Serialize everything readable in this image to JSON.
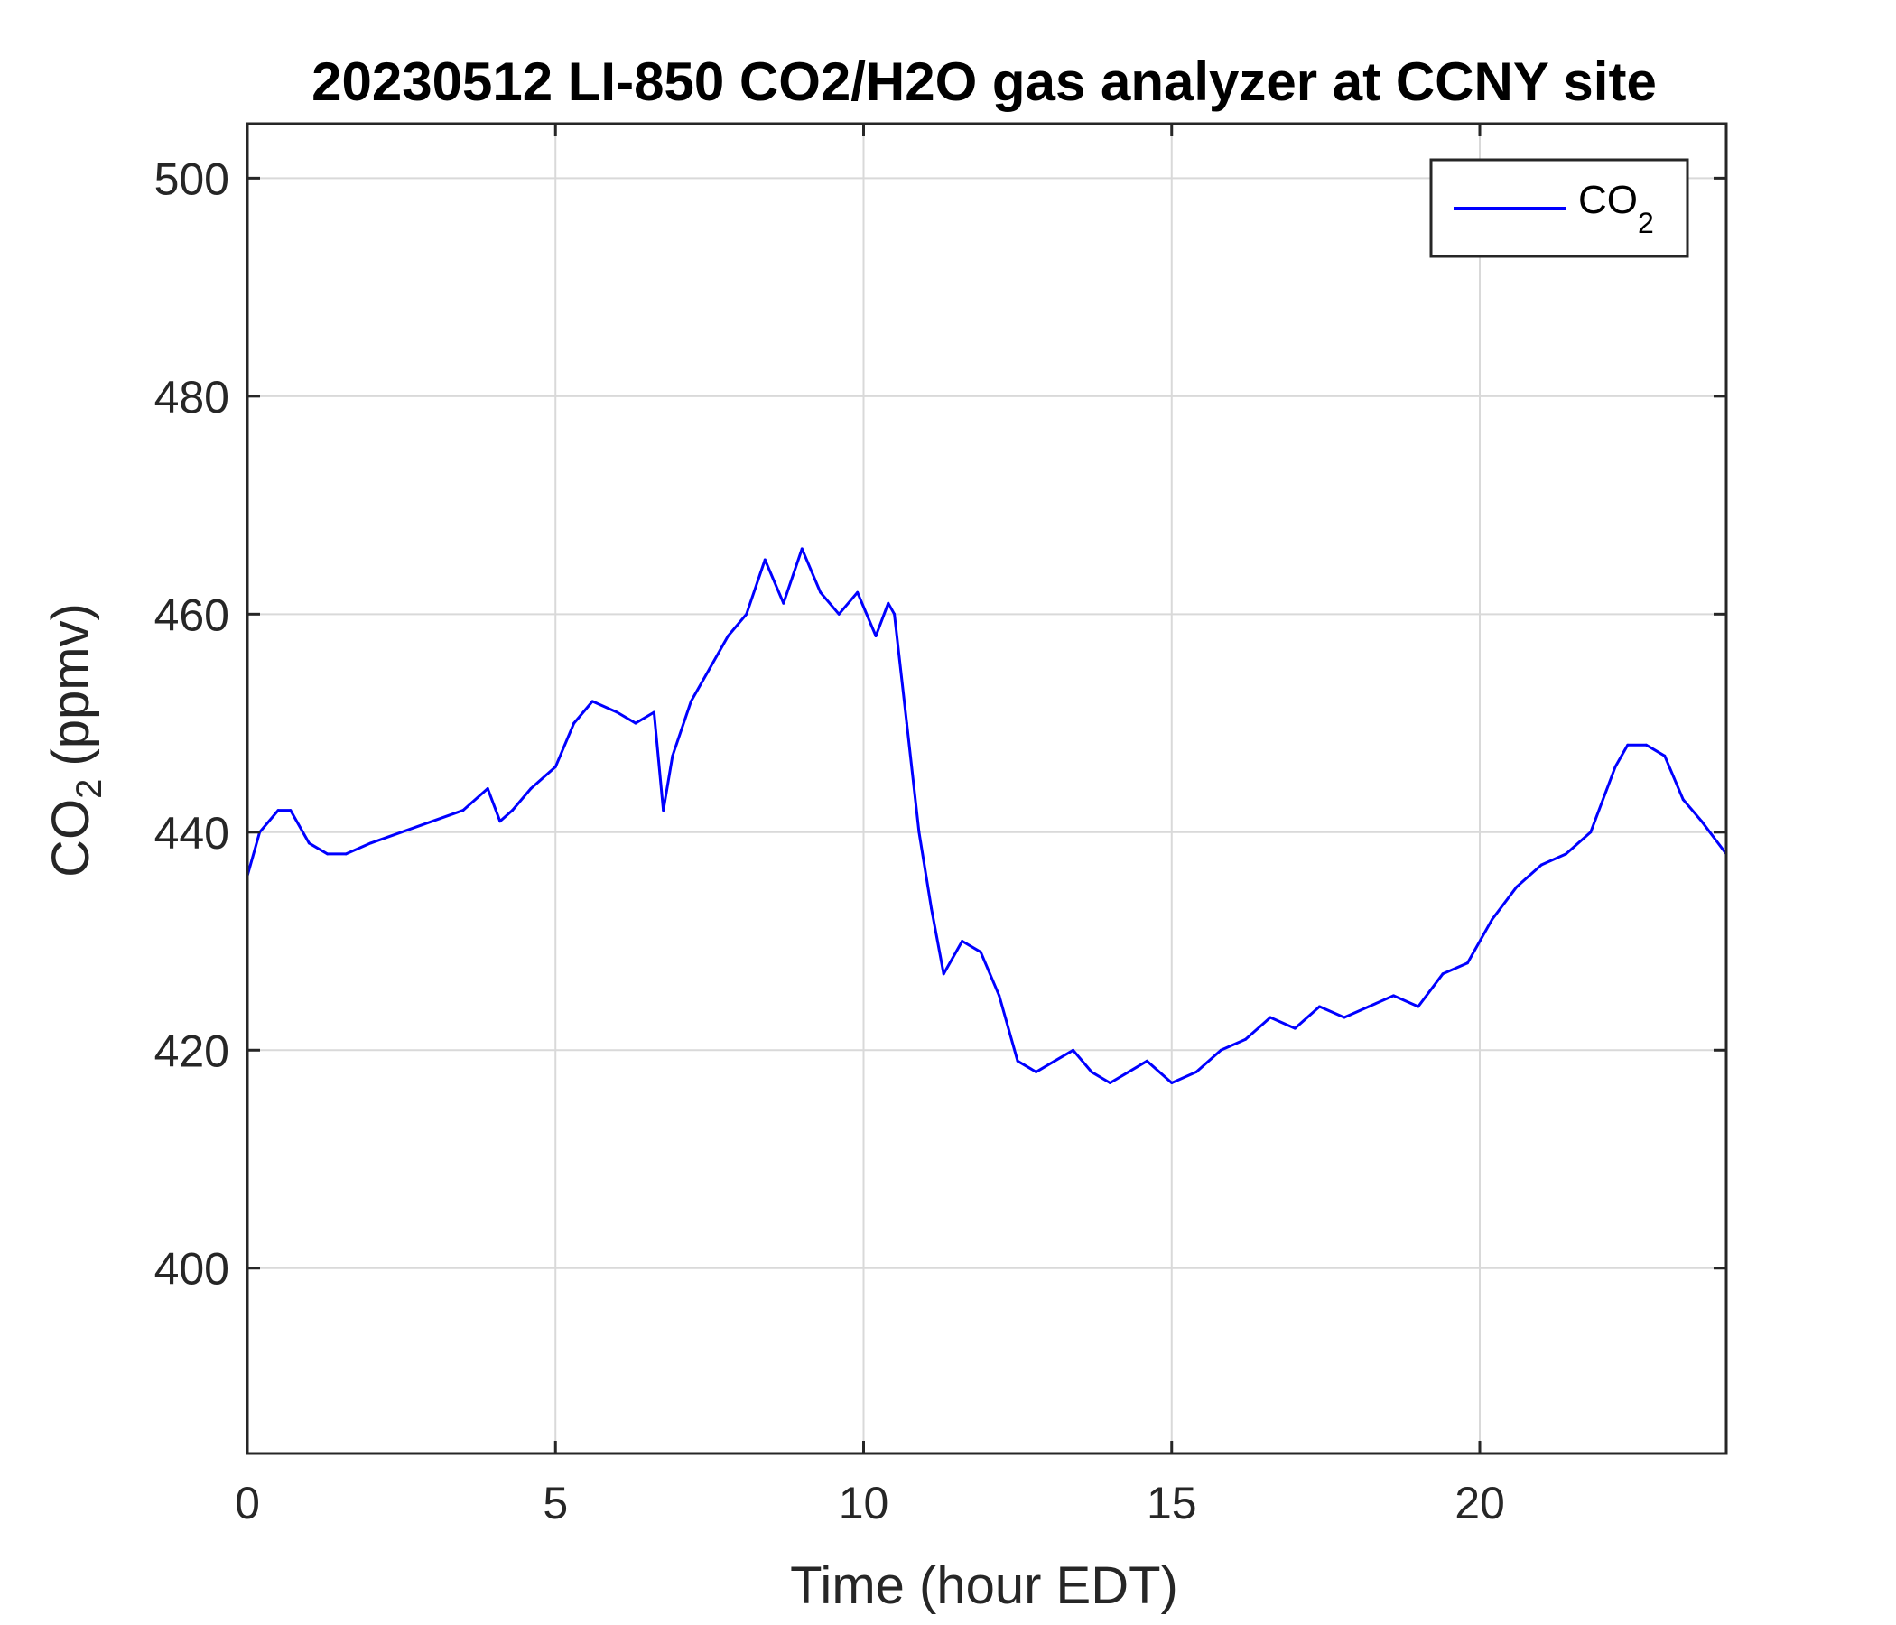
{
  "chart_data": {
    "type": "line",
    "title": "20230512 LI-850 CO2/H2O gas analyzer at CCNY site",
    "xlabel": "Time (hour EDT)",
    "ylabel_main": "CO",
    "ylabel_sub": "2",
    "ylabel_units": "(ppmv)",
    "xlim": [
      0,
      24
    ],
    "ylim": [
      383,
      505
    ],
    "xticks": [
      0,
      5,
      10,
      15,
      20
    ],
    "xtick_labels": [
      "0",
      "5",
      "10",
      "15",
      "20"
    ],
    "yticks": [
      400,
      420,
      440,
      460,
      480,
      500
    ],
    "ytick_labels": [
      "400",
      "420",
      "440",
      "460",
      "480",
      "500"
    ],
    "grid": true,
    "legend_position": "top-right",
    "series": [
      {
        "name": "CO",
        "name_sub": "2",
        "color": "#0000ff",
        "x": [
          0,
          0.2,
          0.5,
          0.7,
          1.0,
          1.3,
          1.6,
          2.0,
          2.5,
          3.0,
          3.5,
          3.9,
          4.1,
          4.3,
          4.6,
          5.0,
          5.3,
          5.6,
          6.0,
          6.3,
          6.6,
          6.75,
          6.9,
          7.2,
          7.5,
          7.8,
          8.1,
          8.4,
          8.7,
          9.0,
          9.3,
          9.6,
          9.9,
          10.2,
          10.4,
          10.5,
          10.7,
          10.9,
          11.1,
          11.3,
          11.6,
          11.9,
          12.2,
          12.5,
          12.8,
          13.1,
          13.4,
          13.7,
          14.0,
          14.3,
          14.6,
          15.0,
          15.4,
          15.8,
          16.2,
          16.6,
          17.0,
          17.4,
          17.8,
          18.2,
          18.6,
          19.0,
          19.4,
          19.8,
          20.2,
          20.6,
          21.0,
          21.4,
          21.8,
          22.2,
          22.4,
          22.7,
          23.0,
          23.3,
          23.6,
          24.0
        ],
        "values": [
          436,
          440,
          442,
          442,
          439,
          438,
          438,
          439,
          440,
          441,
          442,
          444,
          441,
          442,
          444,
          446,
          450,
          452,
          451,
          450,
          451,
          442,
          447,
          452,
          455,
          458,
          460,
          465,
          461,
          466,
          462,
          460,
          462,
          458,
          461,
          460,
          450,
          440,
          433,
          427,
          430,
          429,
          425,
          419,
          418,
          419,
          420,
          418,
          417,
          418,
          419,
          417,
          418,
          420,
          421,
          423,
          422,
          424,
          423,
          424,
          425,
          424,
          427,
          428,
          432,
          435,
          437,
          438,
          440,
          446,
          448,
          448,
          447,
          443,
          441,
          438
        ]
      }
    ]
  }
}
